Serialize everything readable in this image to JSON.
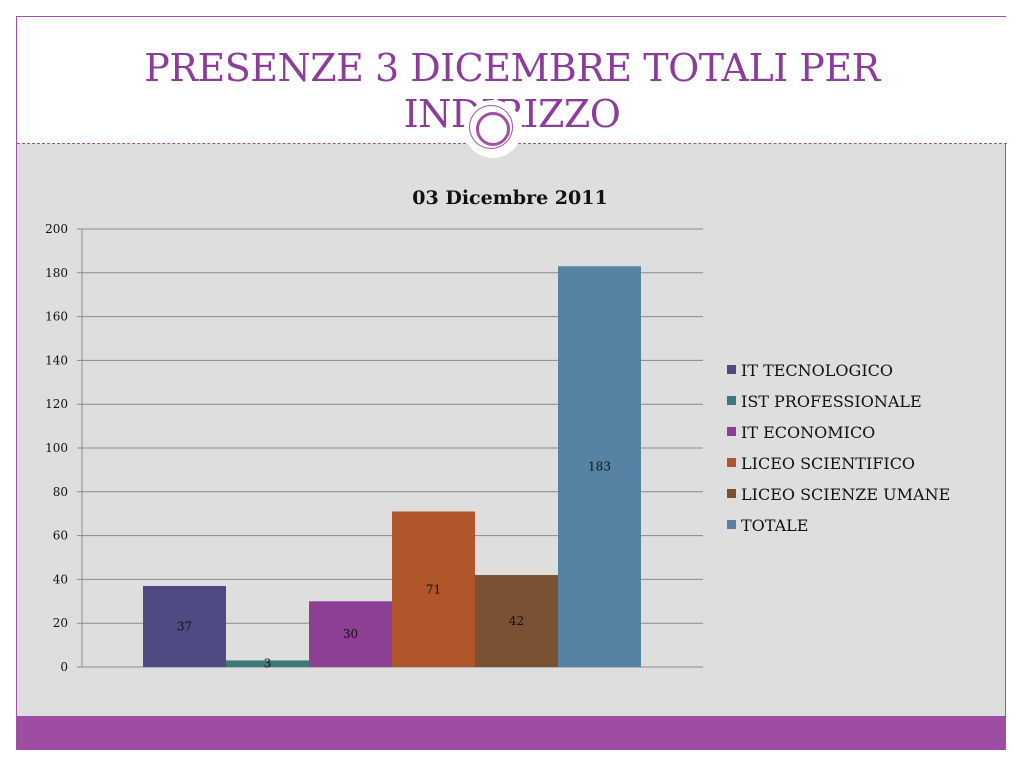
{
  "slide": {
    "title": "PRESENZE 3 DICEMBRE TOTALI PER INDIRIZZO"
  },
  "theme": {
    "accent": "#a24fa5",
    "title_color": "#8b3d9a",
    "content_background": "#dedede",
    "bottom_bar": "#9e4ea2"
  },
  "chart_data": {
    "type": "bar",
    "title": "03 Dicembre 2011",
    "xlabel": "",
    "ylabel": "",
    "ylim": [
      0,
      200
    ],
    "ytick_step": 20,
    "yticks": [
      "0",
      "20",
      "40",
      "60",
      "80",
      "100",
      "120",
      "140",
      "160",
      "180",
      "200"
    ],
    "grid": true,
    "legend_position": "right",
    "series": [
      {
        "name": "IT TECNOLOGICO",
        "value": 37,
        "label": "37",
        "color": "#4f4a82"
      },
      {
        "name": "IST PROFESSIONALE",
        "value": 3,
        "label": "3",
        "color": "#3c7a7a"
      },
      {
        "name": "IT ECONOMICO",
        "value": 30,
        "label": "30",
        "color": "#8d3f94"
      },
      {
        "name": "LICEO SCIENTIFICO",
        "value": 71,
        "label": "71",
        "color": "#b0562a"
      },
      {
        "name": "LICEO SCIENZE UMANE",
        "value": 42,
        "label": "42",
        "color": "#7b5134"
      },
      {
        "name": "TOTALE",
        "value": 183,
        "label": "183",
        "color": "#5683a3"
      }
    ]
  }
}
